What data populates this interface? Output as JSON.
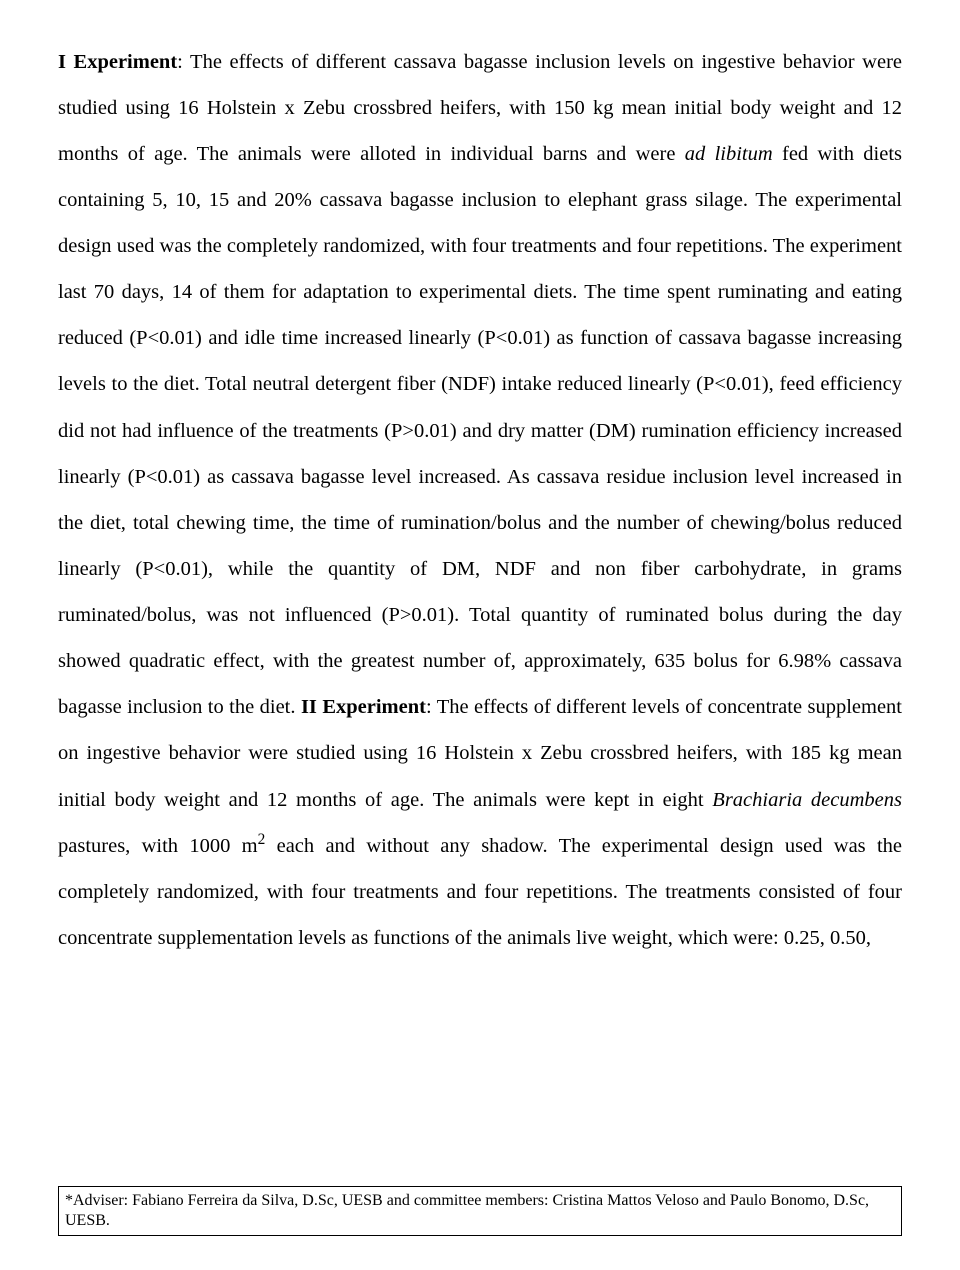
{
  "body": {
    "exp1_label": "I Experiment",
    "part1": ": The effects of different  cassava bagasse inclusion levels on ingestive behavior were studied using 16 Holstein x Zebu crossbred heifers, with 150 kg mean initial body weight and 12 months of age. The animals were alloted in individual barns and were ",
    "ad_libitum": "ad libitum",
    "part2": " fed with diets containing 5, 10, 15 and 20% cassava bagasse inclusion to elephant grass silage. The experimental design used was the completely randomized, with four treatments and four repetitions. The experiment last 70 days, 14 of them for adaptation to experimental diets. The time spent ruminating and eating reduced (P<0.01) and idle time increased linearly (P<0.01) as function of cassava bagasse increasing levels to the diet. Total neutral detergent fiber (NDF) intake reduced linearly (P<0.01), feed efficiency did not had influence of the treatments (P>0.01) and dry matter (DM) rumination efficiency increased linearly (P<0.01) as cassava bagasse level increased. As cassava residue inclusion level increased in the diet, total chewing time, the time of rumination/bolus and the number of chewing/bolus reduced linearly (P<0.01), while the quantity of DM, NDF and non fiber carbohydrate, in grams ruminated/bolus, was not influenced (P>0.01). Total quantity of ruminated bolus during the day showed quadratic effect, with the greatest number of, approximately, 635 bolus for 6.98% cassava bagasse inclusion to the diet. ",
    "exp2_label": "II Experiment",
    "part3": ": The effects of different levels of concentrate supplement on ingestive behavior were studied using 16 Holstein x Zebu crossbred heifers, with 185 kg mean initial body weight and 12 months of age. The animals were kept in eight ",
    "brachiaria": "Brachiaria decumbens",
    "part4a": " pastures, with 1000 m",
    "exponent": "2",
    "part4b": " each and without any shadow. The experimental design used was the completely randomized, with four treatments and four repetitions. The treatments consisted of four concentrate supplementation levels as functions of the animals live weight, which were: 0.25, 0.50,"
  },
  "footnote": {
    "text": "*Adviser: Fabiano Ferreira da Silva, D.Sc, UESB and committee members: Cristina Mattos Veloso and Paulo Bonomo, D.Sc, UESB."
  }
}
